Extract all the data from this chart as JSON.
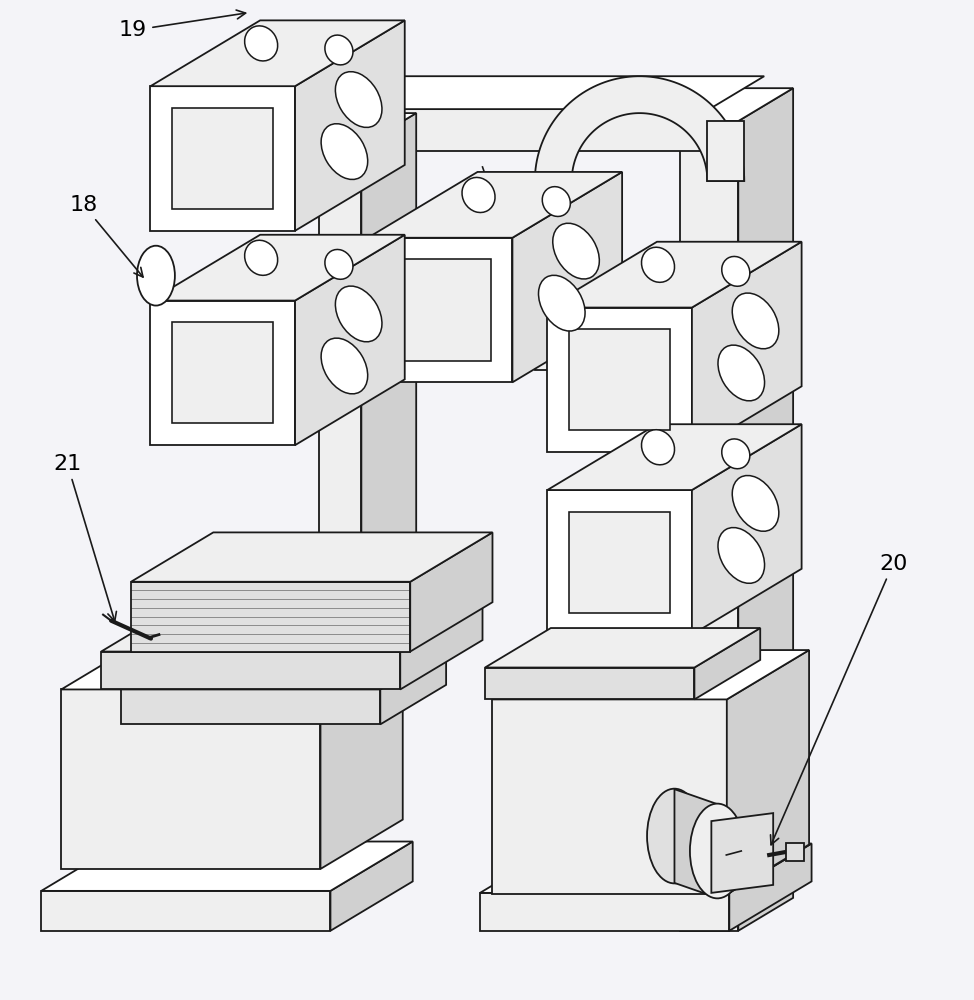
{
  "bg_color": "#f4f4f8",
  "line_color": "#1a1a1a",
  "lw": 1.3,
  "label_color": "#000000",
  "label_fontsize": 16,
  "face_white": "#ffffff",
  "face_light": "#efefef",
  "face_mid": "#e0e0e0",
  "face_dark": "#d0d0d0"
}
